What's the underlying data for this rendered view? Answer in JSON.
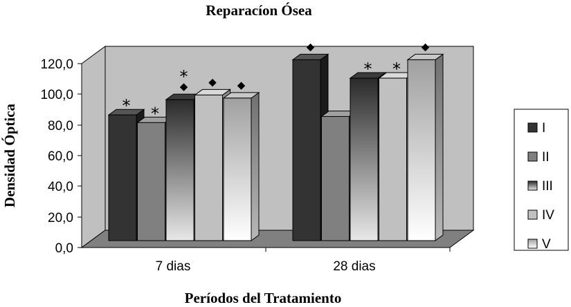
{
  "chart_data": {
    "type": "bar",
    "title": "Reparacíon Ósea",
    "xlabel": "Períodos del Tratamiento",
    "ylabel": "Densidad Óptica",
    "ylim": [
      0,
      120
    ],
    "yticks": [
      "0,0",
      "20,0",
      "40,0",
      "60,0",
      "80,0",
      "100,0",
      "120,0"
    ],
    "categories": [
      "7 dias",
      "28 dias"
    ],
    "series": [
      {
        "name": "I",
        "values": [
          82,
          118
        ]
      },
      {
        "name": "II",
        "values": [
          77,
          81
        ]
      },
      {
        "name": "III",
        "values": [
          92,
          106
        ]
      },
      {
        "name": "IV",
        "values": [
          95,
          106
        ]
      },
      {
        "name": "V",
        "values": [
          93,
          118
        ]
      }
    ],
    "annotations": [
      [
        "*",
        "*",
        "*◆",
        "◆",
        "◆"
      ],
      [
        "◆",
        "",
        "*",
        "*",
        "◆"
      ]
    ],
    "legend_position": "right",
    "grid": false,
    "style": "3d-clustered-column"
  },
  "colors": {
    "I": "#333333",
    "II": "#808080",
    "III_top": "#2a2a2a",
    "III_bottom": "#e8e8e8",
    "IV": "#c0c0c0",
    "V_top": "#a0a0a0",
    "V_bottom": "#ffffff",
    "wall": "#c0c0c0",
    "floor": "#808080"
  }
}
